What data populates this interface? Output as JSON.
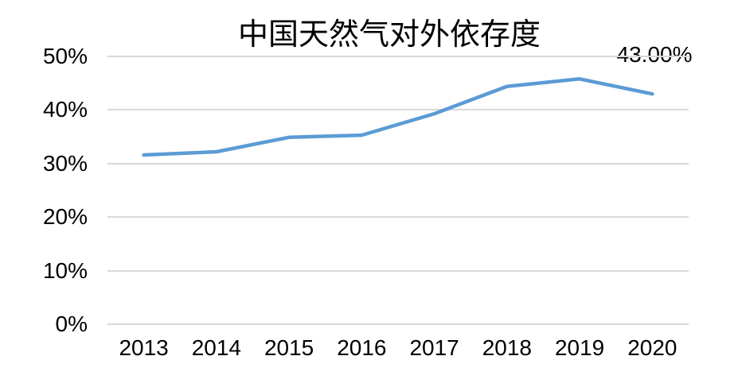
{
  "chart_data": {
    "type": "line",
    "title": "中国天然气对外依存度",
    "categories": [
      "2013",
      "2014",
      "2015",
      "2016",
      "2017",
      "2018",
      "2019",
      "2020"
    ],
    "series": [
      {
        "values": [
          31.6,
          32.2,
          34.9,
          35.3,
          39.3,
          44.4,
          45.8,
          43.0
        ]
      }
    ],
    "last_point_data_label": "43.00%",
    "ylim": [
      0,
      50
    ],
    "yticks": [
      0,
      10,
      20,
      30,
      40,
      50
    ],
    "ytick_labels": [
      "0%",
      "10%",
      "20%",
      "30%",
      "40%",
      "50%"
    ],
    "xlabel": "",
    "ylabel": "",
    "grid": "horizontal",
    "legend_position": "none",
    "line_color": "#5B9BD5",
    "gridline_color": "#D9D9D9",
    "text_color": "#000000",
    "background_color": "#FFFFFF"
  }
}
